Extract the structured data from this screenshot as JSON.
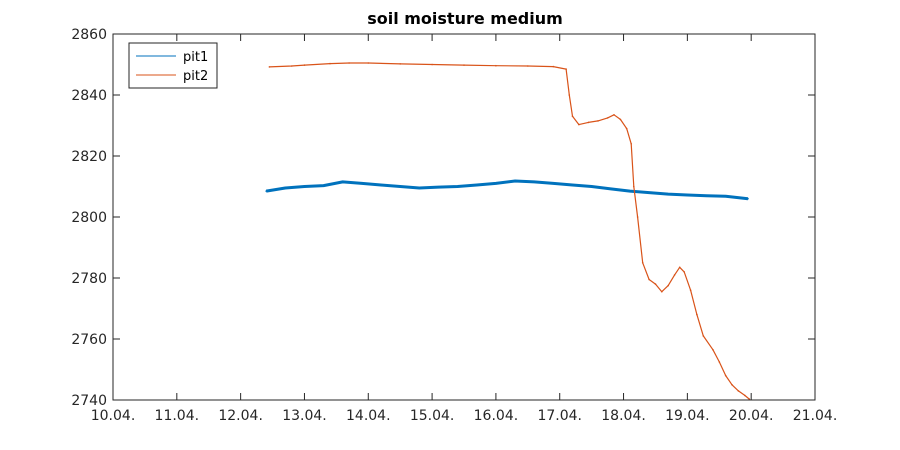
{
  "chart_data": {
    "type": "line",
    "title": "soil moisture medium",
    "xlabel": "",
    "ylabel": "",
    "x_axis": {
      "min": 0,
      "max": 11,
      "ticks": [
        0,
        1,
        2,
        3,
        4,
        5,
        6,
        7,
        8,
        9,
        10,
        11
      ],
      "tick_labels": [
        "10.04.",
        "11.04.",
        "12.04.",
        "13.04.",
        "14.04.",
        "15.04.",
        "16.04.",
        "17.04.",
        "18.04.",
        "19.04.",
        "20.04.",
        "21.04."
      ]
    },
    "y_axis": {
      "min": 2740,
      "max": 2860,
      "ticks": [
        2740,
        2760,
        2780,
        2800,
        2820,
        2840,
        2860
      ],
      "tick_labels": [
        "2740",
        "2760",
        "2780",
        "2800",
        "2820",
        "2840",
        "2860"
      ]
    },
    "grid": false,
    "legend": {
      "position": "top-left"
    },
    "series": [
      {
        "name": "pit1",
        "color": "#0072BD",
        "points": [
          [
            2.4,
            2808.5
          ],
          [
            2.7,
            2809.5
          ],
          [
            3.0,
            2810.0
          ],
          [
            3.3,
            2810.3
          ],
          [
            3.6,
            2811.5
          ],
          [
            3.9,
            2811.0
          ],
          [
            4.2,
            2810.5
          ],
          [
            4.5,
            2810.0
          ],
          [
            4.8,
            2809.5
          ],
          [
            5.1,
            2809.8
          ],
          [
            5.4,
            2810.0
          ],
          [
            5.7,
            2810.5
          ],
          [
            6.0,
            2811.0
          ],
          [
            6.3,
            2811.8
          ],
          [
            6.6,
            2811.5
          ],
          [
            6.9,
            2811.0
          ],
          [
            7.2,
            2810.5
          ],
          [
            7.5,
            2810.0
          ],
          [
            7.8,
            2809.2
          ],
          [
            8.1,
            2808.5
          ],
          [
            8.4,
            2808.0
          ],
          [
            8.7,
            2807.5
          ],
          [
            9.0,
            2807.2
          ],
          [
            9.3,
            2807.0
          ],
          [
            9.6,
            2806.8
          ],
          [
            9.95,
            2806.0
          ]
        ]
      },
      {
        "name": "pit2",
        "color": "#D95319",
        "points": [
          [
            2.45,
            2849.2
          ],
          [
            2.8,
            2849.5
          ],
          [
            3.0,
            2849.8
          ],
          [
            3.4,
            2850.3
          ],
          [
            3.7,
            2850.5
          ],
          [
            4.0,
            2850.5
          ],
          [
            4.5,
            2850.2
          ],
          [
            5.0,
            2850.0
          ],
          [
            5.5,
            2849.8
          ],
          [
            6.0,
            2849.6
          ],
          [
            6.5,
            2849.5
          ],
          [
            6.9,
            2849.3
          ],
          [
            7.1,
            2848.5
          ],
          [
            7.15,
            2840.0
          ],
          [
            7.2,
            2833.0
          ],
          [
            7.3,
            2830.3
          ],
          [
            7.45,
            2831.0
          ],
          [
            7.6,
            2831.5
          ],
          [
            7.75,
            2832.5
          ],
          [
            7.85,
            2833.5
          ],
          [
            7.95,
            2832.0
          ],
          [
            8.05,
            2829.0
          ],
          [
            8.12,
            2824.0
          ],
          [
            8.16,
            2810.0
          ],
          [
            8.22,
            2800.0
          ],
          [
            8.3,
            2785.0
          ],
          [
            8.4,
            2779.5
          ],
          [
            8.5,
            2778.0
          ],
          [
            8.6,
            2775.5
          ],
          [
            8.7,
            2777.5
          ],
          [
            8.8,
            2781.0
          ],
          [
            8.88,
            2783.5
          ],
          [
            8.95,
            2782.0
          ],
          [
            9.05,
            2776.0
          ],
          [
            9.15,
            2768.0
          ],
          [
            9.25,
            2761.0
          ],
          [
            9.4,
            2756.5
          ],
          [
            9.5,
            2752.5
          ],
          [
            9.6,
            2748.0
          ],
          [
            9.7,
            2745.0
          ],
          [
            9.8,
            2743.0
          ],
          [
            9.9,
            2741.5
          ],
          [
            9.97,
            2740.3
          ]
        ]
      }
    ]
  }
}
